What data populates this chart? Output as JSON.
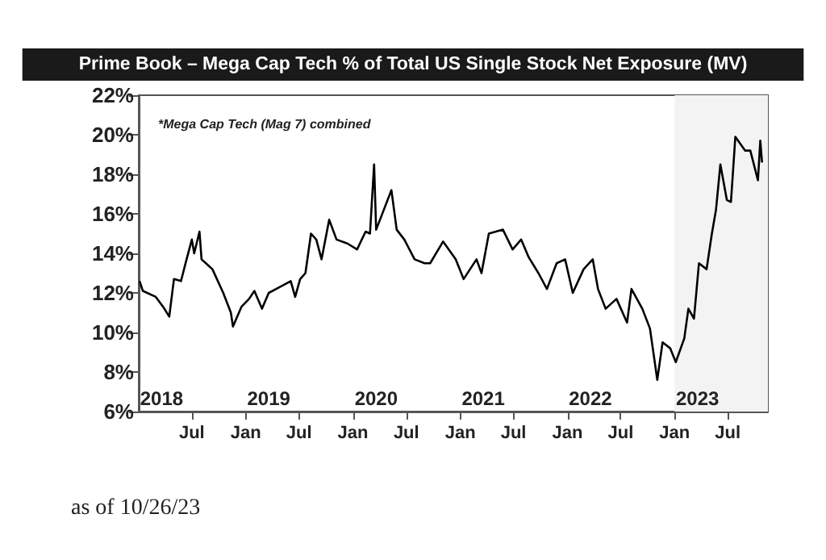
{
  "chart_data": {
    "type": "line",
    "title": "Prime Book – Mega Cap Tech % of Total US Single Stock Net Exposure (MV)",
    "x": [
      "2018-01-04",
      "2018-01-15",
      "2018-02-28",
      "2018-03-25",
      "2018-04-15",
      "2018-05-01",
      "2018-05-25",
      "2018-06-13",
      "2018-07-01",
      "2018-07-09",
      "2018-07-27",
      "2018-08-03",
      "2018-09-09",
      "2018-10-16",
      "2018-11-11",
      "2018-11-18",
      "2018-12-17",
      "2019-01-12",
      "2019-01-30",
      "2019-02-25",
      "2019-03-20",
      "2019-04-27",
      "2019-06-03",
      "2019-06-18",
      "2019-07-05",
      "2019-07-23",
      "2019-08-11",
      "2019-08-29",
      "2019-09-16",
      "2019-10-12",
      "2019-11-06",
      "2019-12-13",
      "2020-01-15",
      "2020-02-13",
      "2020-02-28",
      "2020-03-13",
      "2020-03-20",
      "2020-04-15",
      "2020-05-11",
      "2020-05-29",
      "2020-06-24",
      "2020-07-29",
      "2020-09-01",
      "2020-09-20",
      "2020-11-03",
      "2020-12-16",
      "2021-01-12",
      "2021-02-25",
      "2021-03-14",
      "2021-04-08",
      "2021-05-26",
      "2021-06-28",
      "2021-07-27",
      "2021-08-22",
      "2021-09-24",
      "2021-10-23",
      "2021-11-25",
      "2021-12-24",
      "2022-01-19",
      "2022-02-25",
      "2022-03-28",
      "2022-04-15",
      "2022-05-11",
      "2022-06-17",
      "2022-07-23",
      "2022-08-07",
      "2022-09-13",
      "2022-10-09",
      "2022-11-03",
      "2022-11-21",
      "2022-12-17",
      "2023-01-05",
      "2023-02-03",
      "2023-02-17",
      "2023-03-08",
      "2023-03-25",
      "2023-04-20",
      "2023-05-08",
      "2023-05-22",
      "2023-06-06",
      "2023-06-28",
      "2023-07-12",
      "2023-07-27",
      "2023-08-29",
      "2023-09-16",
      "2023-10-12",
      "2023-10-20",
      "2023-10-26"
    ],
    "series": [
      {
        "color": "#000000",
        "values": [
          12.6,
          12.1,
          11.8,
          11.3,
          10.8,
          12.7,
          12.6,
          13.7,
          14.7,
          14.0,
          15.1,
          13.7,
          13.2,
          12.0,
          11.0,
          10.3,
          11.3,
          11.7,
          12.1,
          11.2,
          12.0,
          12.3,
          12.6,
          11.8,
          12.7,
          13.0,
          15.0,
          14.7,
          13.7,
          15.7,
          14.7,
          14.5,
          14.2,
          15.1,
          15.0,
          18.5,
          15.2,
          16.2,
          17.2,
          15.2,
          14.7,
          13.7,
          13.5,
          13.5,
          14.6,
          13.7,
          12.7,
          13.7,
          13.0,
          15.0,
          15.2,
          14.2,
          14.7,
          13.8,
          13.0,
          12.2,
          13.5,
          13.7,
          12.0,
          13.2,
          13.7,
          12.2,
          11.2,
          11.7,
          10.5,
          12.2,
          11.2,
          10.2,
          7.6,
          9.5,
          9.2,
          8.5,
          9.7,
          11.2,
          10.7,
          13.5,
          13.2,
          15.0,
          16.2,
          18.5,
          16.7,
          16.6,
          19.9,
          19.2,
          19.2,
          17.7,
          19.7,
          18.6
        ]
      }
    ],
    "xlim": [
      "2018-01-01",
      "2023-11-15"
    ],
    "xticks": [
      {
        "value": "2018-07-01",
        "label": "Jul"
      },
      {
        "value": "2019-01-01",
        "label": "Jan"
      },
      {
        "value": "2019-07-01",
        "label": "Jul"
      },
      {
        "value": "2020-01-01",
        "label": "Jan"
      },
      {
        "value": "2020-07-01",
        "label": "Jul"
      },
      {
        "value": "2021-01-01",
        "label": "Jan"
      },
      {
        "value": "2021-07-01",
        "label": "Jul"
      },
      {
        "value": "2022-01-01",
        "label": "Jan"
      },
      {
        "value": "2022-07-01",
        "label": "Jul"
      },
      {
        "value": "2023-01-01",
        "label": "Jan"
      },
      {
        "value": "2023-07-01",
        "label": "Jul"
      }
    ],
    "ylim": [
      6,
      22
    ],
    "yticks": [
      {
        "value": 6,
        "label": "6%"
      },
      {
        "value": 8,
        "label": "8%"
      },
      {
        "value": 10,
        "label": "10%"
      },
      {
        "value": 12,
        "label": "12%"
      },
      {
        "value": 14,
        "label": "14%"
      },
      {
        "value": 16,
        "label": "16%"
      },
      {
        "value": 18,
        "label": "18%"
      },
      {
        "value": 20,
        "label": "20%"
      },
      {
        "value": 22,
        "label": "22%"
      }
    ],
    "bands": [
      {
        "axis": "x",
        "from": "2023-01-01",
        "to": "2023-11-15",
        "color": "#f3f3f3"
      }
    ],
    "annotations": [
      "*Mega Cap Tech (Mag 7) combined",
      "as of 10/26/23",
      "2018",
      "2019",
      "2020",
      "2021",
      "2022",
      "2023"
    ],
    "grid": false,
    "marker": "none",
    "line_style": "solid"
  }
}
